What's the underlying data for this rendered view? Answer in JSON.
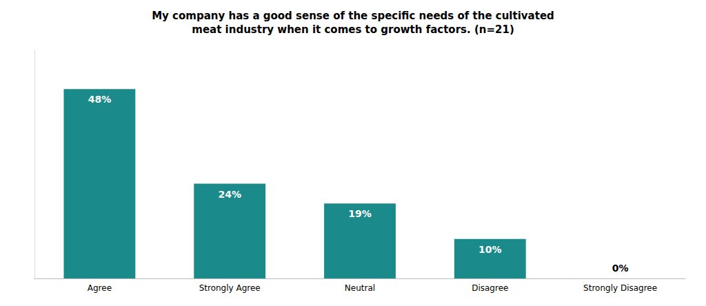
{
  "chart_data": {
    "type": "bar",
    "title": "My company has a good sense of the specific needs of the cultivated\nmeat industry when it comes to growth factors. (n=21)",
    "categories": [
      "Agree",
      "Strongly Agree",
      "Neutral",
      "Disagree",
      "Strongly Disagree"
    ],
    "values": [
      48,
      24,
      19,
      10,
      0
    ],
    "value_labels": [
      "48%",
      "24%",
      "19%",
      "10%",
      "0%"
    ],
    "color": "#1a8a8a",
    "ylim": [
      0,
      58
    ],
    "data_labels": true,
    "tick_labels": "x",
    "grid": false
  }
}
